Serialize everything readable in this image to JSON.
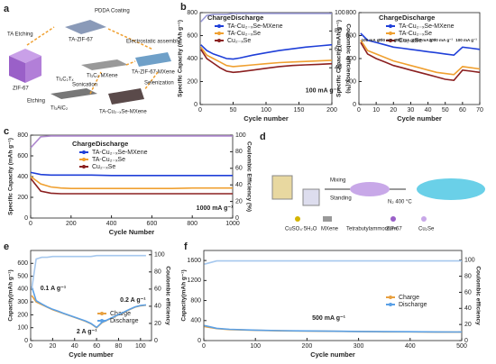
{
  "diagram_a": {
    "panel": "a",
    "texts": [
      "TA-ZIF-67",
      "PDDA Coating",
      "TA Etching",
      "ZIF-67",
      "Ti₃C₂ MXene",
      "Electrostatic assembly",
      "TA-ZIF-67-MXene",
      "Ti₃C₂Tₓ",
      "Ti₃AlC₂",
      "Etching",
      "Sonication",
      "Selenization",
      "TA-Cu₂₋ₓSe-MXene"
    ]
  },
  "diagram_d": {
    "panel": "d",
    "texts": [
      "Mixing",
      "Standing",
      "N₂ 400 °C",
      "CuSO₄·5H₂O",
      "MXene",
      "Tetrabutylammonium",
      "ZIF-67",
      "Cu₂Se"
    ]
  },
  "chart_data": [
    {
      "type": "line",
      "panel": "b",
      "xlabel": "Cycle number",
      "ylabel": "Specific Capacity (mAh g⁻¹)",
      "y2label": "Coulombic efficiency (%)",
      "x": [
        1,
        10,
        20,
        30,
        40,
        50,
        60,
        80,
        100,
        120,
        140,
        160,
        180,
        200
      ],
      "xlim": [
        0,
        200
      ],
      "xticks": [
        0,
        50,
        100,
        150,
        200
      ],
      "ylim": [
        0,
        800
      ],
      "yticks": [
        0,
        200,
        400,
        600,
        800
      ],
      "y2lim": [
        0,
        100
      ],
      "y2ticks": [
        40,
        60,
        80,
        100
      ],
      "legend_header": [
        "Charge",
        "Discharge"
      ],
      "annotations": [
        "100 mA g⁻¹"
      ],
      "series": [
        {
          "name": "TA-Cu₂₋ₓSe-MXene",
          "color": "#1f3fd8",
          "values": [
            520,
            470,
            440,
            420,
            400,
            395,
            405,
            430,
            450,
            470,
            485,
            500,
            510,
            520
          ]
        },
        {
          "name": "TA-Cu₂₋ₓSe",
          "color": "#f0a030",
          "values": [
            500,
            430,
            400,
            370,
            340,
            330,
            335,
            345,
            355,
            365,
            370,
            375,
            380,
            385
          ]
        },
        {
          "name": "Cu₂₋ₓSe",
          "color": "#8b2020",
          "values": [
            480,
            400,
            360,
            320,
            290,
            280,
            285,
            300,
            315,
            330,
            340,
            345,
            350,
            355
          ]
        },
        {
          "color": "#9a9ad8",
          "axis": "y2",
          "values": [
            90,
            97,
            98,
            98,
            98,
            99,
            99,
            99,
            99,
            99,
            99,
            99,
            99,
            99
          ]
        }
      ]
    },
    {
      "type": "line",
      "xlabel": "Cycle number",
      "ylabel": "Specific Capacity (mAh g⁻¹)",
      "x": [
        1,
        5,
        10,
        15,
        20,
        25,
        30,
        35,
        40,
        45,
        50,
        55,
        60,
        65,
        70
      ],
      "xlim": [
        0,
        70
      ],
      "xticks": [
        0,
        10,
        20,
        30,
        40,
        50,
        60,
        70
      ],
      "ylim": [
        0,
        800
      ],
      "yticks": [
        0,
        200,
        400,
        600,
        800
      ],
      "legend_header": [
        "Charge",
        "Discharge"
      ],
      "annotations": [
        "100 mA g⁻¹",
        "200 mA g⁻¹",
        "500 mA g⁻¹",
        "1000 mA g⁻¹",
        "2000 mA g⁻¹",
        "100 mA g⁻¹"
      ],
      "series": [
        {
          "name": "TA-Cu₂₋ₓSe-MXene",
          "color": "#1f3fd8",
          "values": [
            620,
            560,
            540,
            520,
            500,
            490,
            480,
            470,
            460,
            450,
            440,
            430,
            500,
            490,
            480
          ]
        },
        {
          "name": "TA-Cu₂₋ₓSe",
          "color": "#f0a030",
          "values": [
            560,
            470,
            440,
            410,
            380,
            360,
            340,
            320,
            300,
            280,
            270,
            260,
            330,
            320,
            310
          ]
        },
        {
          "name": "Cu₂₋ₓSe",
          "color": "#8b2020",
          "values": [
            540,
            440,
            400,
            370,
            340,
            320,
            300,
            280,
            260,
            240,
            220,
            210,
            300,
            290,
            280
          ]
        }
      ]
    },
    {
      "type": "line",
      "panel": "c",
      "xlabel": "Cycle Number",
      "ylabel": "Specific Capacity (mAh g⁻¹)",
      "y2label": "Coulombic Efficiency (%)",
      "x": [
        1,
        50,
        100,
        150,
        200,
        300,
        400,
        500,
        600,
        700,
        800,
        900,
        1000
      ],
      "xlim": [
        0,
        1000
      ],
      "xticks": [
        0,
        200,
        400,
        600,
        800,
        1000
      ],
      "ylim": [
        0,
        800
      ],
      "yticks": [
        0,
        200,
        400,
        600,
        800
      ],
      "y2lim": [
        0,
        100
      ],
      "y2ticks": [
        0,
        20,
        40,
        60,
        80,
        100
      ],
      "legend_header": [
        "Charge",
        "Discharge"
      ],
      "annotations": [
        "1000 mA g⁻¹"
      ],
      "series": [
        {
          "name": "TA-Cu₂₋ₓSe-MXene",
          "color": "#1f3fd8",
          "values": [
            440,
            420,
            415,
            415,
            415,
            415,
            410,
            410,
            410,
            410,
            410,
            410,
            410
          ]
        },
        {
          "name": "TA-Cu₂₋ₓSe",
          "color": "#f0a030",
          "values": [
            400,
            330,
            300,
            290,
            285,
            285,
            285,
            285,
            285,
            285,
            290,
            290,
            290
          ]
        },
        {
          "name": "Cu₂₋ₓSe",
          "color": "#8b2020",
          "values": [
            380,
            260,
            240,
            235,
            235,
            235,
            235,
            235,
            235,
            235,
            235,
            235,
            235
          ]
        },
        {
          "color": "#b08ad0",
          "axis": "y2",
          "values": [
            85,
            98,
            99,
            99,
            99,
            99,
            99,
            99,
            99,
            99,
            99,
            99,
            99
          ]
        }
      ]
    },
    {
      "type": "line",
      "panel": "e",
      "xlabel": "Cycle number",
      "ylabel": "Capacity(mAh g⁻¹)",
      "y2label": "Coulombic efficiency",
      "x": [
        1,
        5,
        10,
        15,
        20,
        25,
        30,
        35,
        40,
        45,
        50,
        55,
        60,
        65,
        70,
        75,
        80,
        85,
        90,
        95,
        100,
        105
      ],
      "xlim": [
        0,
        110
      ],
      "xticks": [
        0,
        20,
        40,
        60,
        80,
        100
      ],
      "ylim": [
        0,
        700
      ],
      "yticks": [
        0,
        100,
        200,
        300,
        400,
        500,
        600
      ],
      "y2lim": [
        0,
        105
      ],
      "y2ticks": [
        0,
        20,
        40,
        60,
        80,
        100
      ],
      "annotations": [
        "0.1 A g⁻¹",
        "2 A g⁻¹",
        "0.2 A g⁻¹"
      ],
      "series": [
        {
          "name": "Charge",
          "color": "#e8a040",
          "values": [
            350,
            300,
            280,
            260,
            240,
            225,
            210,
            195,
            180,
            165,
            150,
            130,
            100,
            140,
            160,
            180,
            200,
            220,
            240,
            260,
            270,
            275
          ]
        },
        {
          "name": "Discharge",
          "color": "#5aa0e6",
          "values": [
            420,
            310,
            285,
            262,
            243,
            228,
            212,
            197,
            182,
            167,
            152,
            132,
            102,
            142,
            162,
            182,
            202,
            222,
            242,
            262,
            272,
            277
          ]
        },
        {
          "color": "#a6c8ee",
          "axis": "y2",
          "values": [
            60,
            95,
            97,
            97,
            98,
            98,
            98,
            98,
            98,
            98,
            98,
            98,
            99,
            99,
            99,
            99,
            99,
            99,
            99,
            99,
            99,
            99
          ]
        }
      ]
    },
    {
      "type": "line",
      "panel": "f",
      "xlabel": "Cycle number",
      "ylabel": "Capacity(mAh g⁻¹)",
      "y2label": "Coulombic efficiency",
      "x": [
        1,
        25,
        50,
        100,
        150,
        200,
        250,
        300,
        350,
        400,
        450,
        500
      ],
      "xlim": [
        0,
        500
      ],
      "xticks": [
        0,
        100,
        200,
        300,
        400,
        500
      ],
      "ylim": [
        0,
        1800
      ],
      "yticks": [
        0,
        400,
        800,
        1200,
        1600
      ],
      "y2lim": [
        0,
        112
      ],
      "y2ticks": [
        0,
        20,
        40,
        60,
        80,
        100
      ],
      "annotations": [
        "500 mA g⁻¹"
      ],
      "series": [
        {
          "name": "Charge",
          "color": "#e8a040",
          "values": [
            280,
            240,
            220,
            205,
            195,
            190,
            185,
            180,
            175,
            175,
            170,
            170
          ]
        },
        {
          "name": "Discharge",
          "color": "#5aa0e6",
          "values": [
            300,
            245,
            225,
            208,
            198,
            192,
            187,
            182,
            178,
            176,
            172,
            171
          ]
        },
        {
          "color": "#a6c8ee",
          "axis": "y2",
          "values": [
            95,
            99,
            99,
            99,
            99,
            99,
            99,
            99,
            99,
            99,
            99,
            99
          ]
        }
      ]
    }
  ]
}
